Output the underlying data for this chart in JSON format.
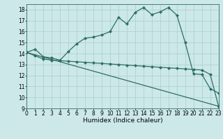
{
  "xlabel": "Humidex (Indice chaleur)",
  "xlim": [
    0,
    23
  ],
  "ylim": [
    9,
    18.5
  ],
  "yticks": [
    9,
    10,
    11,
    12,
    13,
    14,
    15,
    16,
    17,
    18
  ],
  "xticks": [
    0,
    1,
    2,
    3,
    4,
    5,
    6,
    7,
    8,
    9,
    10,
    11,
    12,
    13,
    14,
    15,
    16,
    17,
    18,
    19,
    20,
    21,
    22,
    23
  ],
  "background_color": "#cce8e8",
  "line_color": "#2e6e65",
  "line1_x": [
    0,
    1,
    2,
    3,
    4,
    5,
    6,
    7,
    8,
    9,
    10,
    11,
    12,
    13,
    14,
    15,
    16,
    17,
    18,
    19,
    20,
    21,
    22,
    23
  ],
  "line1_y": [
    14.1,
    14.4,
    13.7,
    13.6,
    13.4,
    14.2,
    14.9,
    15.4,
    15.5,
    15.7,
    16.0,
    17.3,
    16.7,
    17.75,
    18.2,
    17.55,
    17.8,
    18.2,
    17.5,
    15.0,
    12.15,
    12.1,
    10.8,
    10.4
  ],
  "line2_x": [
    0,
    1,
    2,
    3,
    4,
    5,
    6,
    7,
    8,
    9,
    10,
    11,
    12,
    13,
    14,
    15,
    16,
    17,
    18,
    19,
    20,
    21,
    22,
    23
  ],
  "line2_y": [
    14.1,
    13.8,
    13.5,
    13.4,
    13.35,
    13.3,
    13.25,
    13.2,
    13.15,
    13.1,
    13.05,
    13.0,
    12.95,
    12.9,
    12.85,
    12.8,
    12.75,
    12.7,
    12.65,
    12.6,
    12.55,
    12.5,
    12.1,
    9.2
  ],
  "line3_x": [
    0,
    23
  ],
  "line3_y": [
    14.1,
    9.2
  ],
  "markersize": 2.0,
  "linewidth": 0.9,
  "grid_color": "#aacece",
  "xlabel_fontsize": 6.5,
  "tick_fontsize": 5.5
}
